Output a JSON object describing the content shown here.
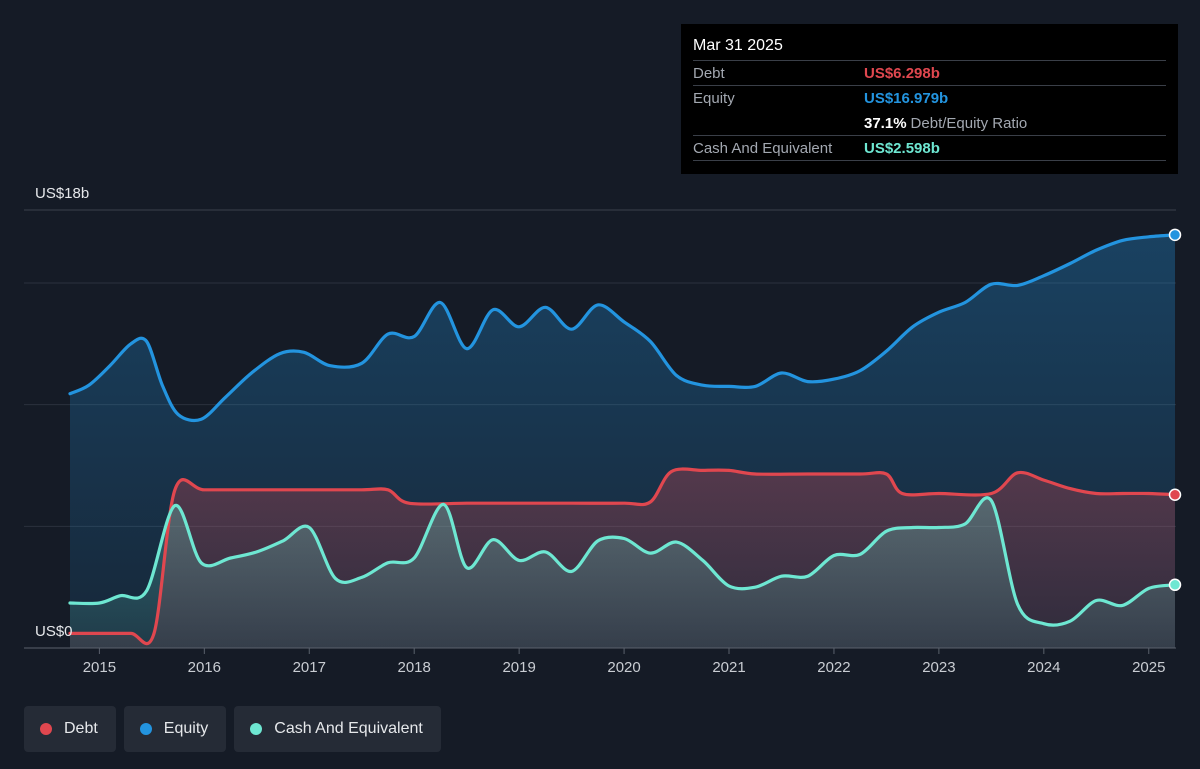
{
  "colors": {
    "background": "#151b26",
    "debt": "#e0474f",
    "equity": "#2394df",
    "cash": "#6ee7d2",
    "grid": "#2b323d"
  },
  "tooltip": {
    "date": "Mar 31 2025",
    "debt_label": "Debt",
    "debt_value": "US$6.298b",
    "equity_label": "Equity",
    "equity_value": "US$16.979b",
    "ratio_value": "37.1%",
    "ratio_label": "Debt/Equity Ratio",
    "cash_label": "Cash And Equivalent",
    "cash_value": "US$2.598b"
  },
  "legend": [
    {
      "name": "Debt",
      "color": "#e0474f"
    },
    {
      "name": "Equity",
      "color": "#2394df"
    },
    {
      "name": "Cash And Equivalent",
      "color": "#6ee7d2"
    }
  ],
  "chart_data": {
    "type": "area",
    "y_unit": "US$b",
    "ylim": [
      0,
      18
    ],
    "ytick_labels": [
      {
        "value": 18,
        "label": "US$18b"
      },
      {
        "value": 0,
        "label": "US$0"
      }
    ],
    "xlim": [
      2014.72,
      2025.25
    ],
    "xticks": [
      2015,
      2016,
      2017,
      2018,
      2019,
      2020,
      2021,
      2022,
      2023,
      2024,
      2025
    ],
    "grid": true,
    "legend_position": "bottom-left",
    "series": [
      {
        "name": "Equity",
        "color": "#2394df",
        "points": [
          [
            2014.72,
            10.45
          ],
          [
            2014.9,
            10.8
          ],
          [
            2015.1,
            11.6
          ],
          [
            2015.3,
            12.5
          ],
          [
            2015.45,
            12.6
          ],
          [
            2015.6,
            10.8
          ],
          [
            2015.75,
            9.6
          ],
          [
            2015.97,
            9.4
          ],
          [
            2016.2,
            10.3
          ],
          [
            2016.45,
            11.3
          ],
          [
            2016.72,
            12.1
          ],
          [
            2016.95,
            12.15
          ],
          [
            2017.2,
            11.6
          ],
          [
            2017.5,
            11.7
          ],
          [
            2017.75,
            12.9
          ],
          [
            2018.0,
            12.8
          ],
          [
            2018.25,
            14.2
          ],
          [
            2018.5,
            12.3
          ],
          [
            2018.75,
            13.9
          ],
          [
            2019.0,
            13.2
          ],
          [
            2019.25,
            14.0
          ],
          [
            2019.5,
            13.1
          ],
          [
            2019.75,
            14.1
          ],
          [
            2020.0,
            13.4
          ],
          [
            2020.25,
            12.6
          ],
          [
            2020.5,
            11.2
          ],
          [
            2020.75,
            10.8
          ],
          [
            2021.0,
            10.75
          ],
          [
            2021.25,
            10.75
          ],
          [
            2021.5,
            11.3
          ],
          [
            2021.75,
            10.95
          ],
          [
            2022.0,
            11.05
          ],
          [
            2022.25,
            11.4
          ],
          [
            2022.5,
            12.2
          ],
          [
            2022.75,
            13.2
          ],
          [
            2023.0,
            13.8
          ],
          [
            2023.25,
            14.2
          ],
          [
            2023.5,
            14.95
          ],
          [
            2023.75,
            14.9
          ],
          [
            2024.0,
            15.3
          ],
          [
            2024.25,
            15.8
          ],
          [
            2024.5,
            16.35
          ],
          [
            2024.75,
            16.75
          ],
          [
            2025.0,
            16.9
          ],
          [
            2025.25,
            16.979
          ]
        ]
      },
      {
        "name": "Debt",
        "color": "#e0474f",
        "points": [
          [
            2014.72,
            0.6
          ],
          [
            2015.0,
            0.6
          ],
          [
            2015.3,
            0.6
          ],
          [
            2015.52,
            0.6
          ],
          [
            2015.72,
            6.5
          ],
          [
            2016.0,
            6.5
          ],
          [
            2016.5,
            6.5
          ],
          [
            2017.0,
            6.5
          ],
          [
            2017.5,
            6.5
          ],
          [
            2017.75,
            6.5
          ],
          [
            2017.95,
            5.95
          ],
          [
            2018.5,
            5.95
          ],
          [
            2019.0,
            5.95
          ],
          [
            2019.5,
            5.95
          ],
          [
            2020.0,
            5.95
          ],
          [
            2020.25,
            6.0
          ],
          [
            2020.45,
            7.25
          ],
          [
            2020.75,
            7.3
          ],
          [
            2021.0,
            7.3
          ],
          [
            2021.25,
            7.15
          ],
          [
            2021.75,
            7.15
          ],
          [
            2022.25,
            7.15
          ],
          [
            2022.5,
            7.15
          ],
          [
            2022.65,
            6.35
          ],
          [
            2023.0,
            6.35
          ],
          [
            2023.5,
            6.35
          ],
          [
            2023.75,
            7.2
          ],
          [
            2024.0,
            6.9
          ],
          [
            2024.25,
            6.55
          ],
          [
            2024.5,
            6.35
          ],
          [
            2024.75,
            6.35
          ],
          [
            2025.0,
            6.35
          ],
          [
            2025.25,
            6.298
          ]
        ]
      },
      {
        "name": "Cash And Equivalent",
        "color": "#6ee7d2",
        "points": [
          [
            2014.72,
            1.85
          ],
          [
            2015.0,
            1.85
          ],
          [
            2015.2,
            2.15
          ],
          [
            2015.45,
            2.35
          ],
          [
            2015.72,
            5.85
          ],
          [
            2015.97,
            3.5
          ],
          [
            2016.25,
            3.7
          ],
          [
            2016.5,
            3.95
          ],
          [
            2016.75,
            4.4
          ],
          [
            2017.0,
            4.95
          ],
          [
            2017.25,
            2.85
          ],
          [
            2017.5,
            2.9
          ],
          [
            2017.75,
            3.5
          ],
          [
            2018.0,
            3.7
          ],
          [
            2018.28,
            5.9
          ],
          [
            2018.5,
            3.3
          ],
          [
            2018.75,
            4.45
          ],
          [
            2019.0,
            3.6
          ],
          [
            2019.25,
            3.95
          ],
          [
            2019.5,
            3.15
          ],
          [
            2019.75,
            4.4
          ],
          [
            2020.0,
            4.5
          ],
          [
            2020.25,
            3.9
          ],
          [
            2020.5,
            4.35
          ],
          [
            2020.75,
            3.6
          ],
          [
            2021.0,
            2.55
          ],
          [
            2021.25,
            2.5
          ],
          [
            2021.5,
            2.95
          ],
          [
            2021.75,
            2.95
          ],
          [
            2022.0,
            3.8
          ],
          [
            2022.25,
            3.85
          ],
          [
            2022.5,
            4.8
          ],
          [
            2022.75,
            4.95
          ],
          [
            2023.0,
            4.95
          ],
          [
            2023.25,
            5.1
          ],
          [
            2023.5,
            6.05
          ],
          [
            2023.75,
            1.8
          ],
          [
            2024.0,
            1.0
          ],
          [
            2024.25,
            1.1
          ],
          [
            2024.5,
            1.95
          ],
          [
            2024.75,
            1.75
          ],
          [
            2025.0,
            2.45
          ],
          [
            2025.25,
            2.598
          ]
        ]
      }
    ]
  }
}
